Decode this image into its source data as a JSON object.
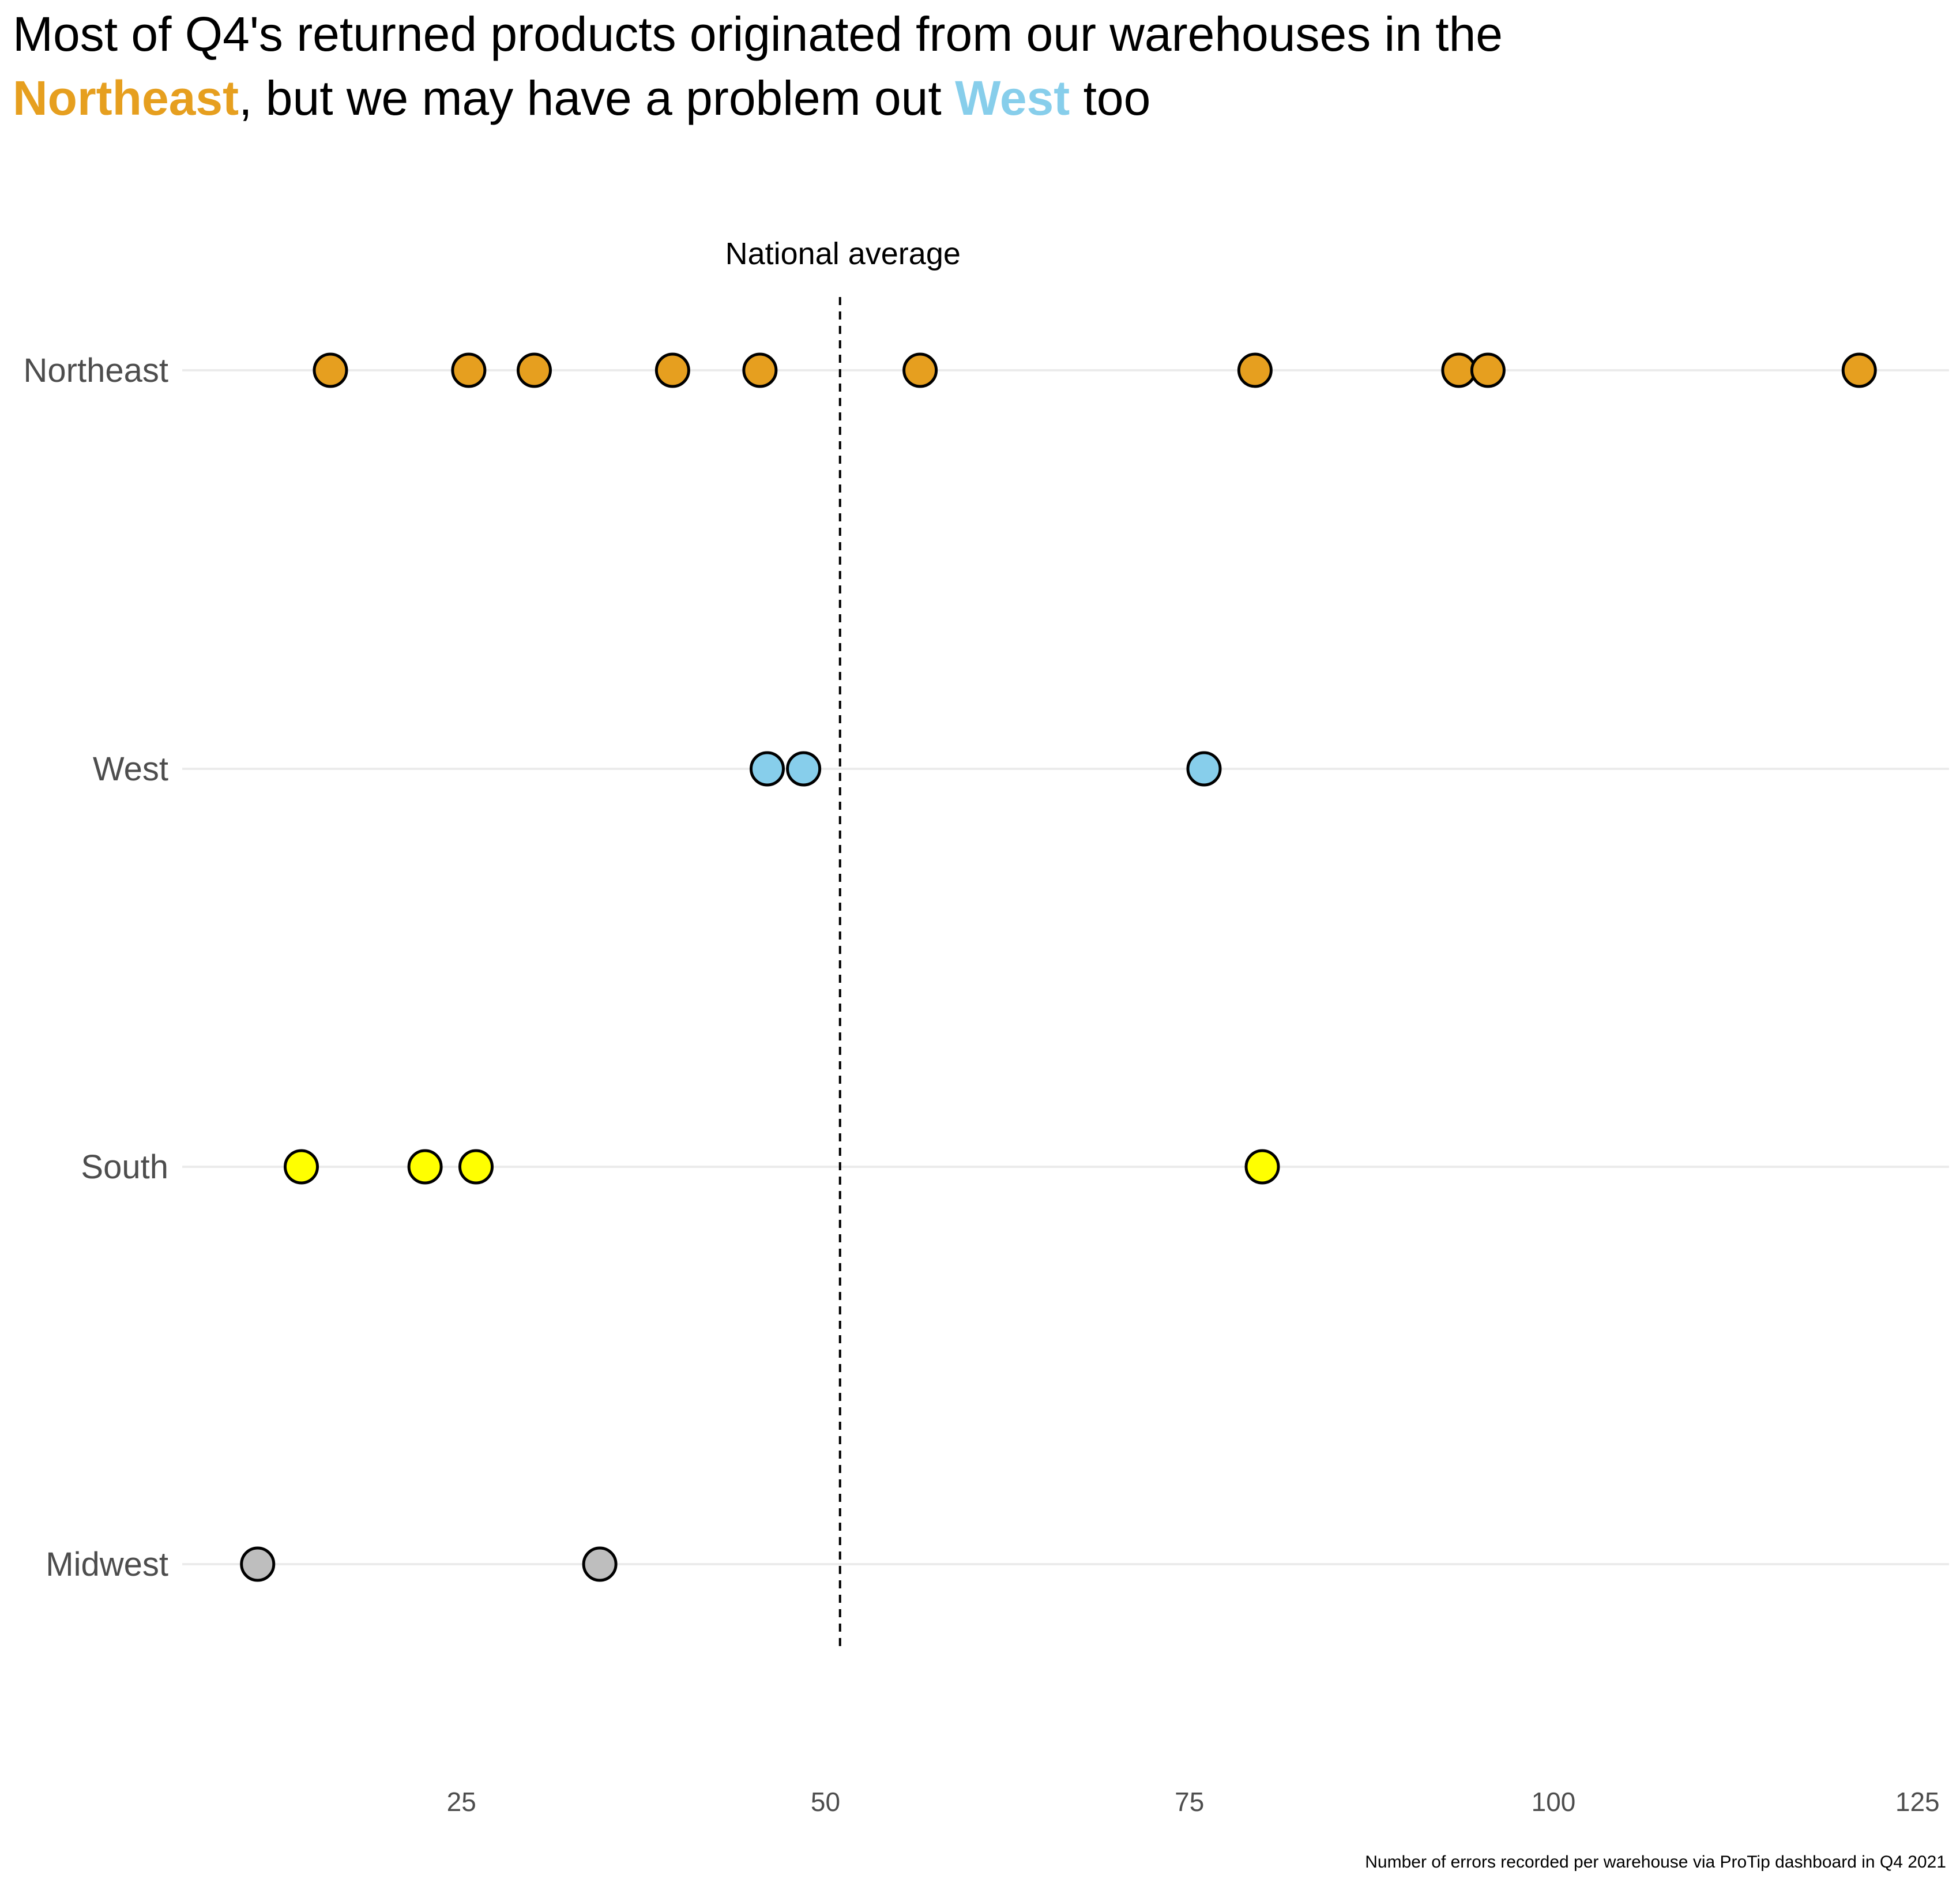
{
  "title": {
    "line1": "Most of Q4's returned products originated from our warehouses in the",
    "northeast": "Northeast",
    "middle": ", but we may have a problem out ",
    "west": "West",
    "end": " too"
  },
  "colors": {
    "Northeast": "#E69F1F",
    "West": "#87CEEB",
    "South": "#FFFF00",
    "Midwest": "#BEBEBE",
    "gridline": "#EBEBEB",
    "point_outline": "#000000"
  },
  "chart_data": {
    "type": "scatter",
    "orientation": "horizontal dot plot",
    "categories": [
      "Northeast",
      "West",
      "South",
      "Midwest"
    ],
    "series": [
      {
        "name": "Northeast",
        "values": [
          16,
          25.5,
          30,
          39.5,
          45.5,
          56.5,
          79.5,
          93.5,
          95.5,
          121
        ]
      },
      {
        "name": "West",
        "values": [
          46,
          48.5,
          76
        ]
      },
      {
        "name": "South",
        "values": [
          14,
          22.5,
          26,
          80
        ]
      },
      {
        "name": "Midwest",
        "values": [
          11,
          34.5
        ]
      }
    ],
    "xlim": [
      0,
      125
    ],
    "x_ticks": [
      25,
      50,
      75,
      100,
      125
    ],
    "reference_line": {
      "value": 51,
      "label": "National average",
      "style": "dashed"
    },
    "caption": "Number of errors recorded per warehouse via ProTip dashboard in Q4 2021",
    "grid": "horizontal major gridlines only",
    "legend": "none"
  }
}
